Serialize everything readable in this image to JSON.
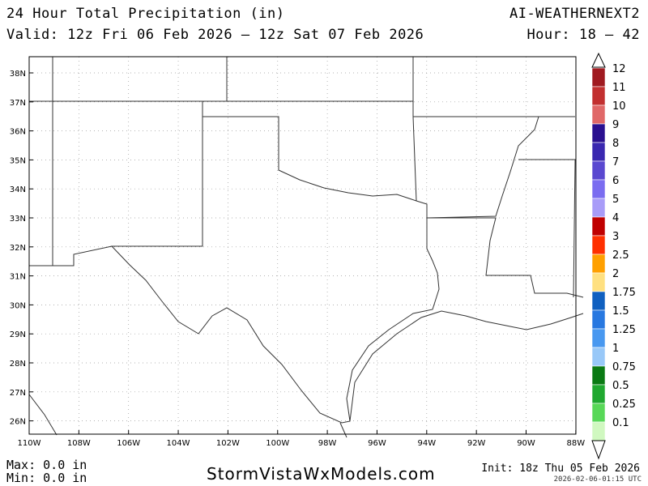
{
  "header": {
    "title": "24 Hour Total Precipitation (in)",
    "valid": "Valid: 12z Fri 06 Feb 2026 — 12z Sat 07 Feb 2026",
    "model": "AI-WEATHERNEXT2",
    "hours": "Hour: 18 — 42"
  },
  "map": {
    "lat_labels": [
      "38N",
      "37N",
      "36N",
      "35N",
      "34N",
      "33N",
      "32N",
      "31N",
      "30N",
      "29N",
      "28N",
      "27N",
      "26N"
    ],
    "lon_labels": [
      "110W",
      "108W",
      "106W",
      "104W",
      "102W",
      "100W",
      "98W",
      "96W",
      "94W",
      "92W",
      "90W",
      "88W"
    ],
    "border_color": "#333333",
    "grid_color": "#999999"
  },
  "legend": {
    "levels": [
      {
        "label": "12",
        "color": "#a01a20"
      },
      {
        "label": "11",
        "color": "#c23030"
      },
      {
        "label": "10",
        "color": "#e06868"
      },
      {
        "label": "9",
        "color": "#2a1090"
      },
      {
        "label": "8",
        "color": "#3a28b0"
      },
      {
        "label": "7",
        "color": "#5a48d0"
      },
      {
        "label": "6",
        "color": "#7a6cf0"
      },
      {
        "label": "5",
        "color": "#a89cf8"
      },
      {
        "label": "4",
        "color": "#c00000"
      },
      {
        "label": "3",
        "color": "#ff3000"
      },
      {
        "label": "2.5",
        "color": "#ffa000"
      },
      {
        "label": "2",
        "color": "#ffe080"
      },
      {
        "label": "1.75",
        "color": "#1060c0"
      },
      {
        "label": "1.5",
        "color": "#2878e0"
      },
      {
        "label": "1.25",
        "color": "#4898f0"
      },
      {
        "label": "1",
        "color": "#98c8f8"
      },
      {
        "label": "0.75",
        "color": "#0a7a14"
      },
      {
        "label": "0.5",
        "color": "#20a830"
      },
      {
        "label": "0.25",
        "color": "#58d858"
      },
      {
        "label": "0.1",
        "color": "#d0f8c0"
      }
    ]
  },
  "footer": {
    "max": "Max: 0.0 in",
    "min": "Min: 0.0 in",
    "site": "StormVistaWxModels.com",
    "init": "Init: 18z Thu 05 Feb 2026",
    "stamp": "2026-02-06-01:15 UTC"
  }
}
